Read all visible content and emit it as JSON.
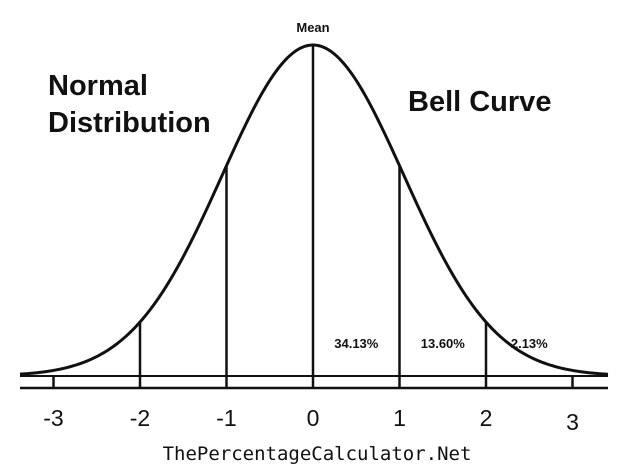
{
  "title_left": [
    "Normal",
    "Distribution"
  ],
  "title_right": "Bell Curve",
  "mean_label": "Mean",
  "footer": "ThePercentageCalculator.Net",
  "chart_data": {
    "type": "line",
    "x_ticks": [
      "-3",
      "-2",
      "-1",
      "0",
      "1",
      "2",
      "3"
    ],
    "percentages": [
      {
        "between": [
          "0",
          "1"
        ],
        "label": "34.13%"
      },
      {
        "between": [
          "1",
          "2"
        ],
        "label": "13.60%"
      },
      {
        "between": [
          "2",
          "3"
        ],
        "label": "2.13%"
      }
    ],
    "colors": {
      "line": "#111111",
      "background": "#ffffff"
    }
  }
}
